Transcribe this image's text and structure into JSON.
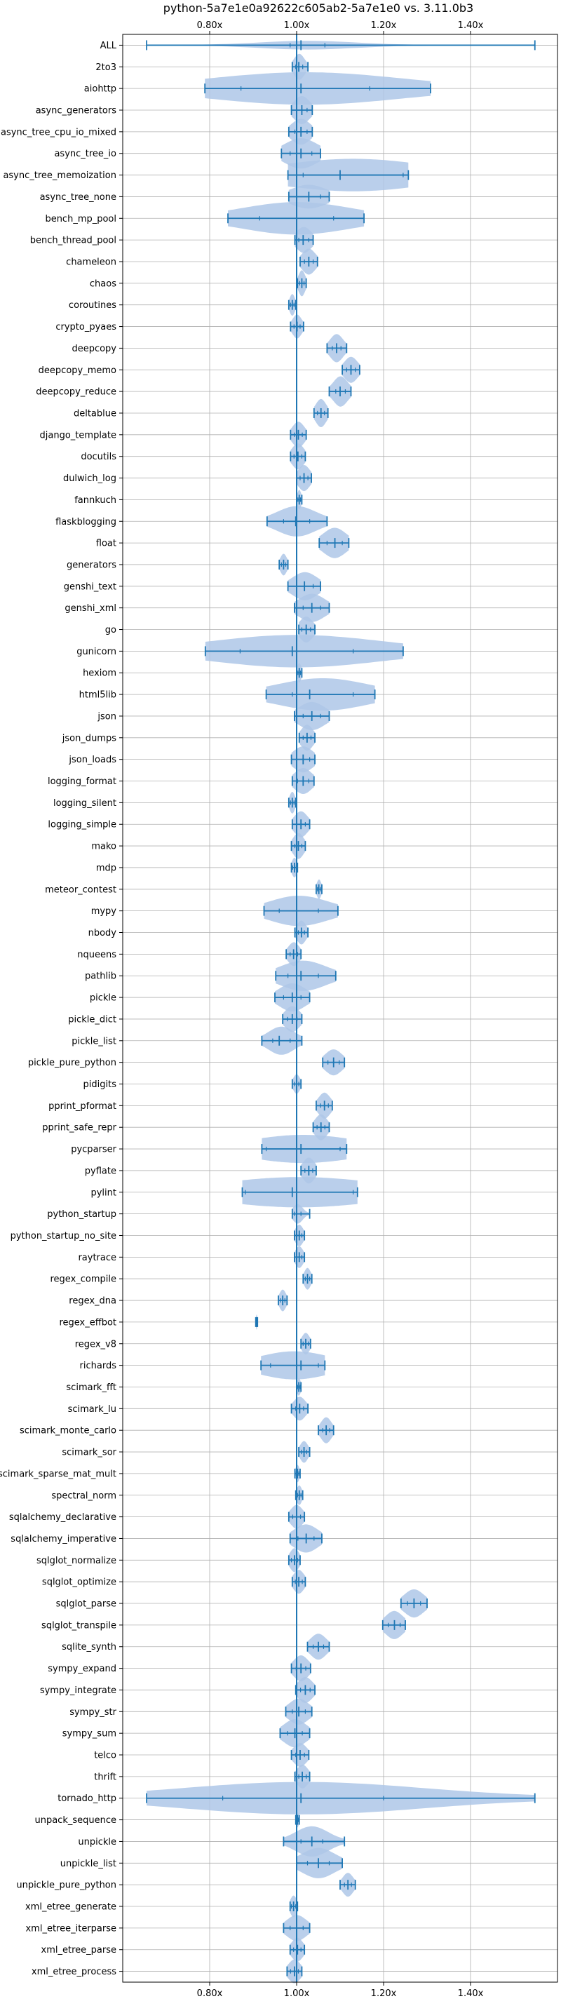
{
  "chart_data": {
    "type": "violin",
    "title": "python-5a7e1e0a92622c605ab2-5a7e1e0 vs. 3.11.0b3",
    "xlabel": "",
    "ylabel": "",
    "xlim": [
      0.6,
      1.6
    ],
    "xticks": [
      0.8,
      1.0,
      1.2,
      1.4
    ],
    "xtick_labels": [
      "0.80x",
      "1.00x",
      "1.20x",
      "1.40x"
    ],
    "reference_line": 1.0,
    "grid": true,
    "colors": {
      "line": "#1f77b4",
      "fill": "#aec7e8",
      "grid": "#b0b0b0"
    },
    "benchmarks": [
      {
        "name": "ALL",
        "min": 0.655,
        "max": 1.548,
        "median": 1.01,
        "q1": 0.985,
        "q3": 1.065,
        "w": 0.2
      },
      {
        "name": "2to3",
        "min": 0.99,
        "max": 1.026,
        "median": 1.005,
        "q1": 0.998,
        "q3": 1.014,
        "w": 0.6
      },
      {
        "name": "aiohttp",
        "min": 0.789,
        "max": 1.308,
        "median": 1.01,
        "q1": 0.872,
        "q3": 1.168,
        "w": 0.75
      },
      {
        "name": "async_generators",
        "min": 0.988,
        "max": 1.036,
        "median": 1.012,
        "q1": 1.0,
        "q3": 1.024,
        "w": 0.65
      },
      {
        "name": "async_tree_cpu_io_mixed",
        "min": 0.982,
        "max": 1.036,
        "median": 1.01,
        "q1": 0.996,
        "q3": 1.024,
        "w": 0.6
      },
      {
        "name": "async_tree_io",
        "min": 0.965,
        "max": 1.055,
        "median": 1.01,
        "q1": 0.985,
        "q3": 1.035,
        "w": 0.7
      },
      {
        "name": "async_tree_memoization",
        "min": 0.98,
        "max": 1.257,
        "median": 1.1,
        "q1": 1.015,
        "q3": 1.245,
        "w": 0.75
      },
      {
        "name": "async_tree_none",
        "min": 0.982,
        "max": 1.075,
        "median": 1.028,
        "q1": 1.0,
        "q3": 1.055,
        "w": 0.55
      },
      {
        "name": "bench_mp_pool",
        "min": 0.842,
        "max": 1.155,
        "median": 1.0,
        "q1": 0.915,
        "q3": 1.085,
        "w": 0.75
      },
      {
        "name": "bench_thread_pool",
        "min": 0.996,
        "max": 1.038,
        "median": 1.015,
        "q1": 1.005,
        "q3": 1.028,
        "w": 0.6
      },
      {
        "name": "chameleon",
        "min": 1.008,
        "max": 1.048,
        "median": 1.028,
        "q1": 1.018,
        "q3": 1.038,
        "w": 0.6
      },
      {
        "name": "chaos",
        "min": 1.002,
        "max": 1.022,
        "median": 1.012,
        "q1": 1.007,
        "q3": 1.017,
        "w": 0.6
      },
      {
        "name": "coroutines",
        "min": 0.982,
        "max": 0.998,
        "median": 0.99,
        "q1": 0.986,
        "q3": 0.994,
        "w": 0.5
      },
      {
        "name": "crypto_pyaes",
        "min": 0.986,
        "max": 1.016,
        "median": 1.001,
        "q1": 0.994,
        "q3": 1.008,
        "w": 0.55
      },
      {
        "name": "deepcopy",
        "min": 1.07,
        "max": 1.115,
        "median": 1.092,
        "q1": 1.082,
        "q3": 1.102,
        "w": 0.65
      },
      {
        "name": "deepcopy_memo",
        "min": 1.105,
        "max": 1.145,
        "median": 1.125,
        "q1": 1.115,
        "q3": 1.135,
        "w": 0.6
      },
      {
        "name": "deepcopy_reduce",
        "min": 1.075,
        "max": 1.125,
        "median": 1.1,
        "q1": 1.09,
        "q3": 1.112,
        "w": 0.7
      },
      {
        "name": "deltablue",
        "min": 1.04,
        "max": 1.072,
        "median": 1.056,
        "q1": 1.048,
        "q3": 1.064,
        "w": 0.65
      },
      {
        "name": "django_template",
        "min": 0.986,
        "max": 1.022,
        "median": 1.004,
        "q1": 0.995,
        "q3": 1.013,
        "w": 0.6
      },
      {
        "name": "docutils",
        "min": 0.986,
        "max": 1.02,
        "median": 1.003,
        "q1": 0.994,
        "q3": 1.012,
        "w": 0.6
      },
      {
        "name": "dulwich_log",
        "min": 1.0,
        "max": 1.034,
        "median": 1.017,
        "q1": 1.008,
        "q3": 1.026,
        "w": 0.6
      },
      {
        "name": "fannkuch",
        "min": 1.0,
        "max": 1.012,
        "median": 1.006,
        "q1": 1.003,
        "q3": 1.009,
        "w": 0.45
      },
      {
        "name": "flaskblogging",
        "min": 0.932,
        "max": 1.07,
        "median": 0.998,
        "q1": 0.97,
        "q3": 1.03,
        "w": 0.7
      },
      {
        "name": "float",
        "min": 1.052,
        "max": 1.12,
        "median": 1.088,
        "q1": 1.07,
        "q3": 1.105,
        "w": 0.7
      },
      {
        "name": "generators",
        "min": 0.96,
        "max": 0.98,
        "median": 0.97,
        "q1": 0.965,
        "q3": 0.975,
        "w": 0.5
      },
      {
        "name": "genshi_text",
        "min": 0.98,
        "max": 1.055,
        "median": 1.018,
        "q1": 1.0,
        "q3": 1.038,
        "w": 0.65
      },
      {
        "name": "genshi_xml",
        "min": 0.995,
        "max": 1.075,
        "median": 1.035,
        "q1": 1.015,
        "q3": 1.055,
        "w": 0.65
      },
      {
        "name": "go",
        "min": 1.005,
        "max": 1.042,
        "median": 1.022,
        "q1": 1.012,
        "q3": 1.032,
        "w": 0.6
      },
      {
        "name": "gunicorn",
        "min": 0.79,
        "max": 1.245,
        "median": 0.99,
        "q1": 0.87,
        "q3": 1.13,
        "w": 0.75
      },
      {
        "name": "hexiom",
        "min": 1.0,
        "max": 1.012,
        "median": 1.006,
        "q1": 1.003,
        "q3": 1.009,
        "w": 0.45
      },
      {
        "name": "html5lib",
        "min": 0.93,
        "max": 1.18,
        "median": 1.03,
        "q1": 0.99,
        "q3": 1.13,
        "w": 0.75
      },
      {
        "name": "json",
        "min": 0.995,
        "max": 1.075,
        "median": 1.035,
        "q1": 1.015,
        "q3": 1.055,
        "w": 0.65
      },
      {
        "name": "json_dumps",
        "min": 1.006,
        "max": 1.042,
        "median": 1.024,
        "q1": 1.015,
        "q3": 1.033,
        "w": 0.6
      },
      {
        "name": "json_loads",
        "min": 0.988,
        "max": 1.042,
        "median": 1.015,
        "q1": 1.0,
        "q3": 1.03,
        "w": 0.6
      },
      {
        "name": "logging_format",
        "min": 0.99,
        "max": 1.04,
        "median": 1.015,
        "q1": 1.002,
        "q3": 1.028,
        "w": 0.6
      },
      {
        "name": "logging_silent",
        "min": 0.982,
        "max": 0.998,
        "median": 0.99,
        "q1": 0.986,
        "q3": 0.994,
        "w": 0.5
      },
      {
        "name": "logging_simple",
        "min": 0.99,
        "max": 1.03,
        "median": 1.01,
        "q1": 1.0,
        "q3": 1.02,
        "w": 0.6
      },
      {
        "name": "mako",
        "min": 0.988,
        "max": 1.02,
        "median": 1.004,
        "q1": 0.996,
        "q3": 1.012,
        "w": 0.6
      },
      {
        "name": "mdp",
        "min": 0.988,
        "max": 1.002,
        "median": 0.995,
        "q1": 0.991,
        "q3": 0.999,
        "w": 0.45
      },
      {
        "name": "meteor_contest",
        "min": 1.045,
        "max": 1.058,
        "median": 1.051,
        "q1": 1.048,
        "q3": 1.055,
        "w": 0.45
      },
      {
        "name": "mypy",
        "min": 0.925,
        "max": 1.095,
        "median": 1.0,
        "q1": 0.96,
        "q3": 1.05,
        "w": 0.7
      },
      {
        "name": "nbody",
        "min": 0.996,
        "max": 1.026,
        "median": 1.011,
        "q1": 1.004,
        "q3": 1.018,
        "w": 0.55
      },
      {
        "name": "nqueens",
        "min": 0.976,
        "max": 1.01,
        "median": 0.993,
        "q1": 0.985,
        "q3": 1.002,
        "w": 0.55
      },
      {
        "name": "pathlib",
        "min": 0.952,
        "max": 1.09,
        "median": 1.01,
        "q1": 0.98,
        "q3": 1.05,
        "w": 0.7
      },
      {
        "name": "pickle",
        "min": 0.95,
        "max": 1.03,
        "median": 0.99,
        "q1": 0.97,
        "q3": 1.01,
        "w": 0.65
      },
      {
        "name": "pickle_dict",
        "min": 0.968,
        "max": 1.012,
        "median": 0.99,
        "q1": 0.979,
        "q3": 1.001,
        "w": 0.6
      },
      {
        "name": "pickle_list",
        "min": 0.92,
        "max": 1.012,
        "median": 0.96,
        "q1": 0.945,
        "q3": 0.985,
        "w": 0.65
      },
      {
        "name": "pickle_pure_python",
        "min": 1.06,
        "max": 1.11,
        "median": 1.085,
        "q1": 1.072,
        "q3": 1.098,
        "w": 0.6
      },
      {
        "name": "pidigits",
        "min": 0.99,
        "max": 1.01,
        "median": 1.0,
        "q1": 0.995,
        "q3": 1.005,
        "w": 0.45
      },
      {
        "name": "pprint_pformat",
        "min": 1.045,
        "max": 1.082,
        "median": 1.064,
        "q1": 1.055,
        "q3": 1.073,
        "w": 0.6
      },
      {
        "name": "pprint_safe_repr",
        "min": 1.038,
        "max": 1.075,
        "median": 1.056,
        "q1": 1.047,
        "q3": 1.065,
        "w": 0.6
      },
      {
        "name": "pycparser",
        "min": 0.92,
        "max": 1.115,
        "median": 1.01,
        "q1": 0.93,
        "q3": 1.1,
        "w": 0.65
      },
      {
        "name": "pyflate",
        "min": 1.01,
        "max": 1.045,
        "median": 1.028,
        "q1": 1.019,
        "q3": 1.037,
        "w": 0.6
      },
      {
        "name": "pylint",
        "min": 0.875,
        "max": 1.14,
        "median": 0.99,
        "q1": 0.882,
        "q3": 1.13,
        "w": 0.7
      },
      {
        "name": "python_startup",
        "min": 0.99,
        "max": 1.03,
        "median": 1.0,
        "q1": 0.995,
        "q3": 1.01,
        "w": 0.45
      },
      {
        "name": "python_startup_no_site",
        "min": 0.995,
        "max": 1.018,
        "median": 1.006,
        "q1": 1.0,
        "q3": 1.012,
        "w": 0.5
      },
      {
        "name": "raytrace",
        "min": 0.995,
        "max": 1.018,
        "median": 1.006,
        "q1": 1.0,
        "q3": 1.012,
        "w": 0.5
      },
      {
        "name": "regex_compile",
        "min": 1.015,
        "max": 1.035,
        "median": 1.025,
        "q1": 1.02,
        "q3": 1.03,
        "w": 0.5
      },
      {
        "name": "regex_dna",
        "min": 0.958,
        "max": 0.978,
        "median": 0.968,
        "q1": 0.963,
        "q3": 0.973,
        "w": 0.5
      },
      {
        "name": "regex_effbot",
        "min": 0.906,
        "max": 0.91,
        "median": 0.908,
        "q1": 0.907,
        "q3": 0.909,
        "w": 0.35
      },
      {
        "name": "regex_v8",
        "min": 1.01,
        "max": 1.032,
        "median": 1.021,
        "q1": 1.015,
        "q3": 1.027,
        "w": 0.5
      },
      {
        "name": "richards",
        "min": 0.918,
        "max": 1.065,
        "median": 1.01,
        "q1": 0.94,
        "q3": 1.05,
        "w": 0.65
      },
      {
        "name": "scimark_fft",
        "min": 1.0,
        "max": 1.01,
        "median": 1.005,
        "q1": 1.002,
        "q3": 1.008,
        "w": 0.4
      },
      {
        "name": "scimark_lu",
        "min": 0.988,
        "max": 1.026,
        "median": 1.007,
        "q1": 0.998,
        "q3": 1.016,
        "w": 0.55
      },
      {
        "name": "scimark_monte_carlo",
        "min": 1.05,
        "max": 1.085,
        "median": 1.068,
        "q1": 1.06,
        "q3": 1.076,
        "w": 0.6
      },
      {
        "name": "scimark_sor",
        "min": 1.005,
        "max": 1.03,
        "median": 1.017,
        "q1": 1.011,
        "q3": 1.023,
        "w": 0.5
      },
      {
        "name": "scimark_sparse_mat_mult",
        "min": 0.996,
        "max": 1.008,
        "median": 1.002,
        "q1": 0.999,
        "q3": 1.005,
        "w": 0.4
      },
      {
        "name": "spectral_norm",
        "min": 0.998,
        "max": 1.014,
        "median": 1.006,
        "q1": 1.002,
        "q3": 1.01,
        "w": 0.45
      },
      {
        "name": "sqlalchemy_declarative",
        "min": 0.982,
        "max": 1.018,
        "median": 1.0,
        "q1": 0.991,
        "q3": 1.009,
        "w": 0.55
      },
      {
        "name": "sqlalchemy_imperative",
        "min": 0.985,
        "max": 1.058,
        "median": 1.022,
        "q1": 1.003,
        "q3": 1.04,
        "w": 0.65
      },
      {
        "name": "sqlglot_normalize",
        "min": 0.982,
        "max": 1.008,
        "median": 0.995,
        "q1": 0.988,
        "q3": 1.002,
        "w": 0.55
      },
      {
        "name": "sqlglot_optimize",
        "min": 0.99,
        "max": 1.02,
        "median": 1.005,
        "q1": 0.997,
        "q3": 1.013,
        "w": 0.55
      },
      {
        "name": "sqlglot_parse",
        "min": 1.24,
        "max": 1.3,
        "median": 1.27,
        "q1": 1.255,
        "q3": 1.285,
        "w": 0.65
      },
      {
        "name": "sqlglot_transpile",
        "min": 1.198,
        "max": 1.25,
        "median": 1.225,
        "q1": 1.211,
        "q3": 1.238,
        "w": 0.65
      },
      {
        "name": "sqlite_synth",
        "min": 1.025,
        "max": 1.075,
        "median": 1.05,
        "q1": 1.038,
        "q3": 1.062,
        "w": 0.6
      },
      {
        "name": "sympy_expand",
        "min": 0.988,
        "max": 1.032,
        "median": 1.01,
        "q1": 0.999,
        "q3": 1.021,
        "w": 0.6
      },
      {
        "name": "sympy_integrate",
        "min": 0.998,
        "max": 1.042,
        "median": 1.02,
        "q1": 1.009,
        "q3": 1.031,
        "w": 0.6
      },
      {
        "name": "sympy_str",
        "min": 0.975,
        "max": 1.035,
        "median": 1.005,
        "q1": 0.99,
        "q3": 1.02,
        "w": 0.6
      },
      {
        "name": "sympy_sum",
        "min": 0.962,
        "max": 1.03,
        "median": 0.996,
        "q1": 0.979,
        "q3": 1.013,
        "w": 0.65
      },
      {
        "name": "telco",
        "min": 0.988,
        "max": 1.028,
        "median": 1.008,
        "q1": 0.998,
        "q3": 1.018,
        "w": 0.55
      },
      {
        "name": "thrift",
        "min": 0.996,
        "max": 1.03,
        "median": 1.013,
        "q1": 1.005,
        "q3": 1.022,
        "w": 0.55
      },
      {
        "name": "tornado_http",
        "min": 0.655,
        "max": 1.548,
        "median": 1.01,
        "q1": 0.83,
        "q3": 1.2,
        "w": 0.75
      },
      {
        "name": "unpack_sequence",
        "min": 0.998,
        "max": 1.006,
        "median": 1.002,
        "q1": 1.0,
        "q3": 1.004,
        "w": 0.35
      },
      {
        "name": "unpickle",
        "min": 0.97,
        "max": 1.11,
        "median": 1.035,
        "q1": 1.01,
        "q3": 1.06,
        "w": 0.7
      },
      {
        "name": "unpickle_list",
        "min": 1.0,
        "max": 1.105,
        "median": 1.05,
        "q1": 1.025,
        "q3": 1.075,
        "w": 0.7
      },
      {
        "name": "unpickle_pure_python",
        "min": 1.1,
        "max": 1.135,
        "median": 1.118,
        "q1": 1.11,
        "q3": 1.126,
        "w": 0.55
      },
      {
        "name": "xml_etree_generate",
        "min": 0.985,
        "max": 1.002,
        "median": 0.993,
        "q1": 0.988,
        "q3": 0.998,
        "w": 0.5
      },
      {
        "name": "xml_etree_iterparse",
        "min": 0.97,
        "max": 1.03,
        "median": 1.0,
        "q1": 0.985,
        "q3": 1.015,
        "w": 0.6
      },
      {
        "name": "xml_etree_parse",
        "min": 0.985,
        "max": 1.018,
        "median": 1.002,
        "q1": 0.993,
        "q3": 1.01,
        "w": 0.55
      },
      {
        "name": "xml_etree_process",
        "min": 0.978,
        "max": 1.012,
        "median": 0.995,
        "q1": 0.986,
        "q3": 1.004,
        "w": 0.55
      }
    ]
  }
}
